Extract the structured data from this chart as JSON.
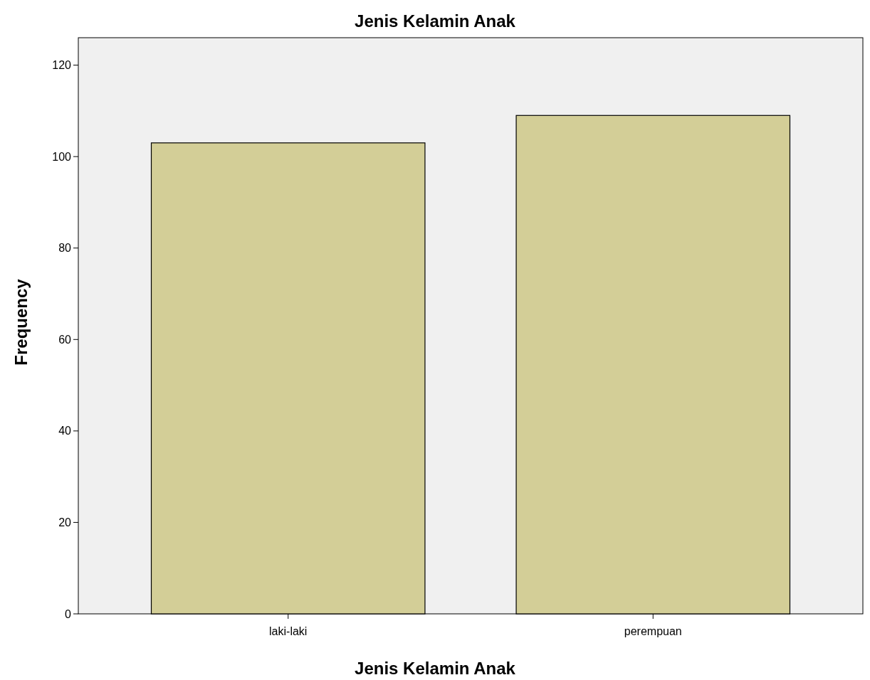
{
  "chart_data": {
    "type": "bar",
    "title": "Jenis Kelamin Anak",
    "xlabel": "Jenis Kelamin Anak",
    "ylabel": "Frequency",
    "categories": [
      "laki-laki",
      "perempuan"
    ],
    "values": [
      103,
      109
    ],
    "color": "#d3ce97",
    "ylim": [
      0,
      126
    ],
    "yticks": [
      0,
      20,
      40,
      60,
      80,
      100,
      120
    ],
    "grid": false
  }
}
